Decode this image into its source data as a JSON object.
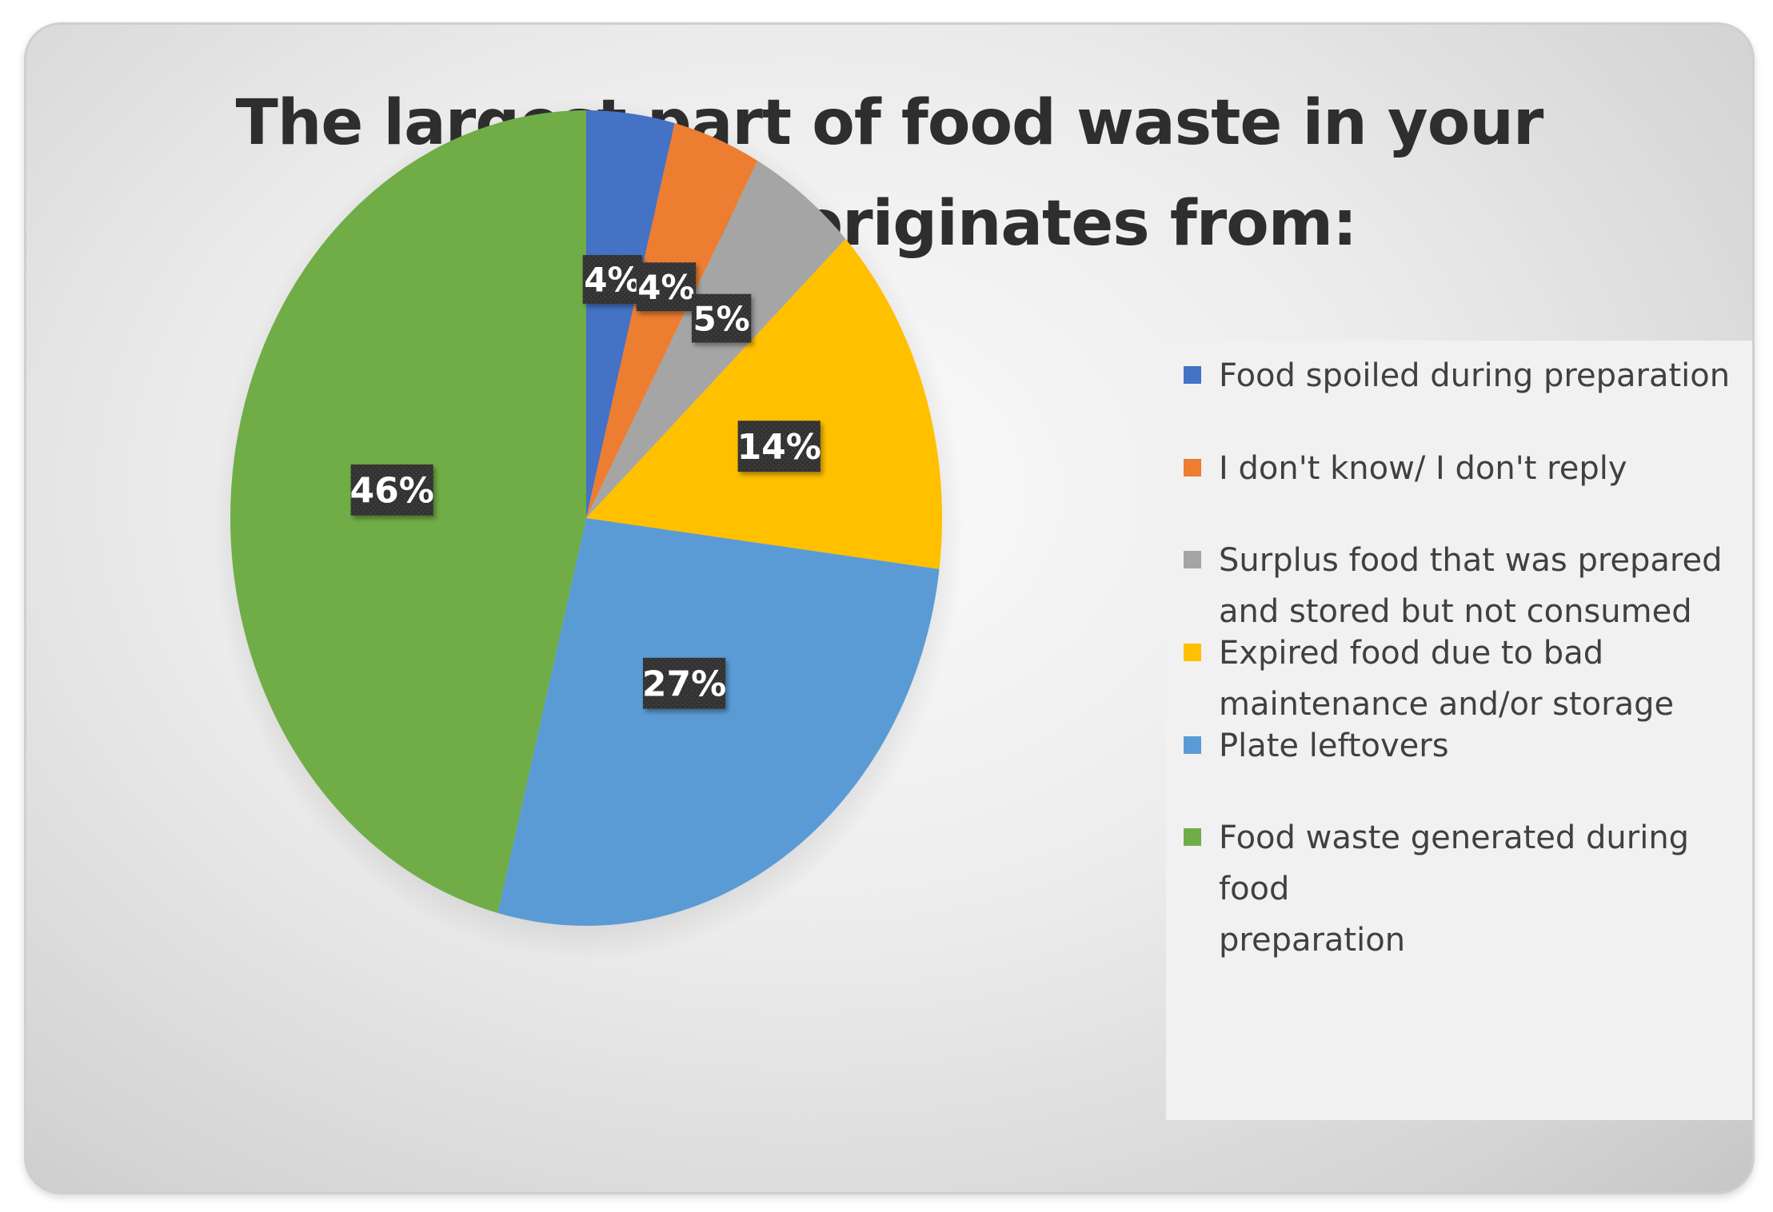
{
  "chart_data": {
    "type": "pie",
    "title_lines": [
      "The largest part of food waste in your",
      "household originates from:"
    ],
    "categories": [
      "Food spoiled during preparation",
      "I don't know/ I don't reply",
      "Surplus food that was prepared and stored but not consumed",
      "Expired food due to bad maintenance and/or storage",
      "Plate leftovers",
      "Food waste generated during food preparation"
    ],
    "values": [
      4,
      4,
      5,
      14,
      27,
      46
    ],
    "data_labels": [
      "4%",
      "4%",
      "5%",
      "14%",
      "27%",
      "46%"
    ],
    "colors": [
      "#4472c4",
      "#ed7d31",
      "#a5a5a5",
      "#ffc000",
      "#5b9bd5",
      "#70ad47"
    ],
    "legend_placement": "right",
    "legend_lines": [
      [
        "Food spoiled during preparation"
      ],
      [
        "I don't know/ I don't reply"
      ],
      [
        "Surplus food that was prepared",
        "and stored but not consumed"
      ],
      [
        "Expired food due to bad",
        "maintenance and/or storage"
      ],
      [
        "Plate leftovers"
      ],
      [
        "Food waste generated during food",
        "preparation"
      ]
    ]
  }
}
